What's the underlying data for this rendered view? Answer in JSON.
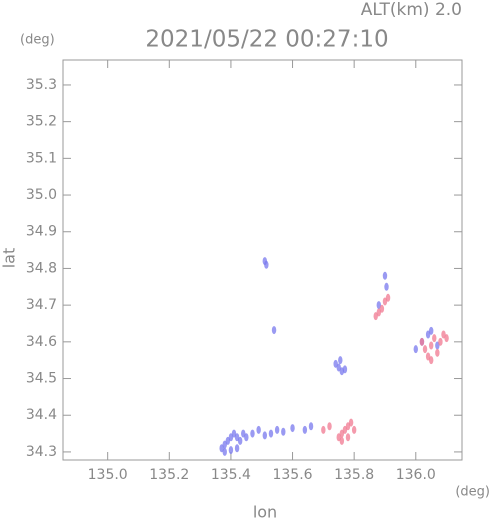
{
  "chart_data": {
    "type": "scatter",
    "title": "2021/05/22 00:27:10",
    "subtitle": "ALT(km) 2.0",
    "ylabel": "lat",
    "xlabel": "lon",
    "y_unit": "(deg)",
    "x_unit": "(deg)",
    "xlim": [
      134.855,
      136.15
    ],
    "ylim": [
      34.278,
      35.368
    ],
    "xticks": [
      {
        "value": 135.0,
        "label": "135.0"
      },
      135.2,
      135.4,
      135.6,
      135.8,
      {
        "value": 136.0,
        "label": "136.0"
      }
    ],
    "yticks": [
      34.3,
      34.4,
      34.5,
      34.6,
      34.7,
      34.8,
      34.9,
      {
        "value": 35.0,
        "label": "35.0"
      },
      35.1,
      35.2,
      35.3
    ],
    "series": [
      {
        "color": "#7878ee",
        "x": [
          135.51,
          135.515,
          135.54,
          135.37,
          135.38,
          135.39,
          135.4,
          135.41,
          135.42,
          135.43,
          135.44,
          135.45,
          135.38,
          135.4,
          135.42,
          135.47,
          135.49,
          135.51,
          135.53,
          135.55,
          135.57,
          135.6,
          135.74,
          135.75,
          135.76,
          135.77,
          135.755,
          135.9,
          135.905,
          135.88,
          136.0,
          136.02,
          136.04,
          136.05,
          136.07,
          135.66,
          135.64
        ],
        "y": [
          34.82,
          34.81,
          34.632,
          34.31,
          34.32,
          34.33,
          34.34,
          34.35,
          34.34,
          34.33,
          34.35,
          34.34,
          34.3,
          34.305,
          34.31,
          34.35,
          34.36,
          34.345,
          34.35,
          34.36,
          34.355,
          34.365,
          34.54,
          34.53,
          34.52,
          34.525,
          34.55,
          34.78,
          34.75,
          34.7,
          34.58,
          34.6,
          34.62,
          34.63,
          34.59,
          34.37,
          34.36
        ]
      },
      {
        "color": "#f07890",
        "x": [
          135.7,
          135.72,
          135.75,
          135.76,
          135.77,
          135.78,
          135.79,
          135.8,
          135.76,
          135.78,
          135.87,
          135.88,
          135.89,
          135.9,
          135.91,
          136.02,
          136.03,
          136.04,
          136.05,
          136.06,
          136.07,
          136.08,
          136.09,
          136.1,
          136.05
        ],
        "y": [
          34.36,
          34.37,
          34.34,
          34.35,
          34.36,
          34.37,
          34.38,
          34.36,
          34.33,
          34.34,
          34.67,
          34.68,
          34.69,
          34.71,
          34.72,
          34.6,
          34.58,
          34.56,
          34.59,
          34.61,
          34.57,
          34.6,
          34.62,
          34.61,
          34.55
        ]
      }
    ]
  }
}
